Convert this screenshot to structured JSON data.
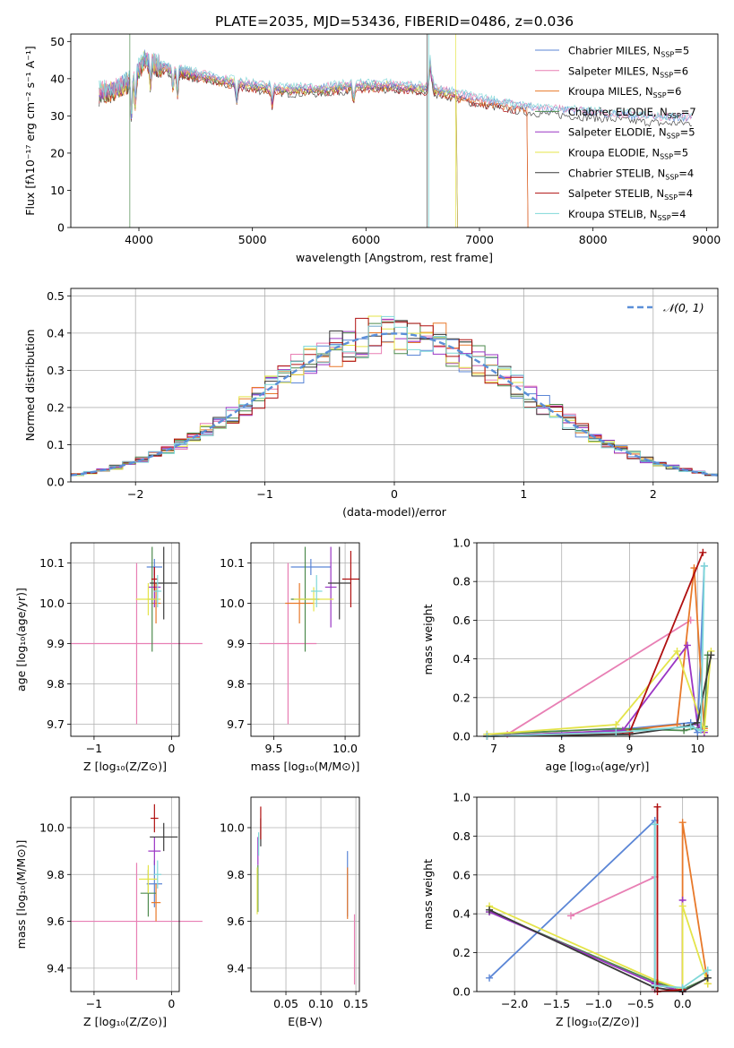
{
  "colors": {
    "chabrier_miles": "#5b86d6",
    "salpeter_miles": "#e87fb4",
    "kroupa_miles": "#e8792a",
    "chabrier_elodie": "#4e8a4e",
    "salpeter_elodie": "#9a35c4",
    "kroupa_elodie": "#e4e44a",
    "chabrier_stelib": "#3a3a3a",
    "salpeter_stelib": "#b01010",
    "kroupa_stelib": "#7fd8d8",
    "normal": "#5b8fd8",
    "grid": "#b0b0b0"
  },
  "chart_data": [
    {
      "id": "spectrum",
      "type": "line",
      "title": "PLATE=2035, MJD=53436, FIBERID=0486, z=0.036",
      "xlabel": "wavelength [Angstrom, rest frame]",
      "ylabel": "Flux [fλ10⁻¹⁷ erg cm⁻² s⁻¹ A⁻¹]",
      "xlim": [
        3400,
        9100
      ],
      "ylim": [
        0,
        52
      ],
      "xticks": [
        "4000",
        "5000",
        "6000",
        "7000",
        "8000",
        "9000"
      ],
      "yticks": [
        "0",
        "10",
        "20",
        "30",
        "40",
        "50"
      ],
      "grid": false,
      "legend_position": "top-right",
      "legend": [
        {
          "label": "Chabrier MILES, N",
          "sub": "SSP",
          "suffix": "=5",
          "key": "chabrier_miles"
        },
        {
          "label": "Salpeter MILES, N",
          "sub": "SSP",
          "suffix": "=6",
          "key": "salpeter_miles"
        },
        {
          "label": "Kroupa MILES, N",
          "sub": "SSP",
          "suffix": "=6",
          "key": "kroupa_miles"
        },
        {
          "label": "Chabrier ELODIE, N",
          "sub": "SSP",
          "suffix": "=7",
          "key": "chabrier_elodie"
        },
        {
          "label": "Salpeter ELODIE, N",
          "sub": "SSP",
          "suffix": "=5",
          "key": "salpeter_elodie"
        },
        {
          "label": "Kroupa ELODIE, N",
          "sub": "SSP",
          "suffix": "=5",
          "key": "kroupa_elodie"
        },
        {
          "label": "Chabrier STELIB, N",
          "sub": "SSP",
          "suffix": "=4",
          "key": "chabrier_stelib"
        },
        {
          "label": "Salpeter STELIB, N",
          "sub": "SSP",
          "suffix": "=4",
          "key": "salpeter_stelib"
        },
        {
          "label": "Kroupa STELIB, N",
          "sub": "SSP",
          "suffix": "=4",
          "key": "kroupa_stelib"
        }
      ],
      "continuum": [
        [
          3650,
          36
        ],
        [
          3800,
          37
        ],
        [
          3950,
          40
        ],
        [
          4050,
          45
        ],
        [
          4200,
          43
        ],
        [
          4500,
          41
        ],
        [
          4800,
          39
        ],
        [
          5000,
          38
        ],
        [
          5300,
          37
        ],
        [
          5600,
          37
        ],
        [
          5900,
          38
        ],
        [
          6200,
          38
        ],
        [
          6600,
          37
        ],
        [
          7000,
          34
        ],
        [
          7400,
          32
        ],
        [
          7800,
          31
        ],
        [
          8200,
          30
        ],
        [
          8600,
          29
        ],
        [
          8900,
          29
        ]
      ]
    },
    {
      "id": "residuals",
      "type": "histogram",
      "xlabel": "(data-model)/error",
      "ylabel": "Normed distribution",
      "xlim": [
        -2.5,
        2.5
      ],
      "ylim": [
        0,
        0.52
      ],
      "xticks": [
        "−2",
        "−1",
        "0",
        "1",
        "2"
      ],
      "yticks": [
        "0.0",
        "0.1",
        "0.2",
        "0.3",
        "0.4",
        "0.5"
      ],
      "grid": true,
      "legend_position": "top-right",
      "legend": [
        {
          "label": "𝒩(0, 1)",
          "key": "normal",
          "style": "dashed"
        }
      ],
      "bin_width": 0.1,
      "normal": {
        "mean": 0,
        "sigma": 1
      }
    },
    {
      "id": "age_vs_Z",
      "type": "errorbar",
      "xlabel": "Z [log₁₀(Z/Z⊙)]",
      "ylabel": "age  [log₁₀(age/yr)]",
      "xlim": [
        -1.3,
        0.1
      ],
      "ylim": [
        9.67,
        10.15
      ],
      "xticks": [
        "−1",
        "0"
      ],
      "yticks": [
        "9.7",
        "9.8",
        "9.9",
        "10.0",
        "10.1"
      ],
      "grid": true,
      "points": [
        {
          "key": "chabrier_miles",
          "x": -0.22,
          "xerr": 0.1,
          "y": 10.09,
          "yerr": 0.02
        },
        {
          "key": "salpeter_miles",
          "x": -0.45,
          "xerr": 0.85,
          "y": 9.9,
          "yerr": 0.2
        },
        {
          "key": "kroupa_miles",
          "x": -0.2,
          "xerr": 0.06,
          "y": 10.0,
          "yerr": 0.05
        },
        {
          "key": "chabrier_elodie",
          "x": -0.25,
          "xerr": 0.06,
          "y": 10.01,
          "yerr": 0.13
        },
        {
          "key": "salpeter_elodie",
          "x": -0.22,
          "xerr": 0.08,
          "y": 10.04,
          "yerr": 0.05
        },
        {
          "key": "kroupa_elodie",
          "x": -0.3,
          "xerr": 0.16,
          "y": 10.01,
          "yerr": 0.04
        },
        {
          "key": "chabrier_stelib",
          "x": -0.1,
          "xerr": 0.18,
          "y": 10.05,
          "yerr": 0.09
        },
        {
          "key": "salpeter_stelib",
          "x": -0.22,
          "xerr": 0.04,
          "y": 10.06,
          "yerr": 0.03
        },
        {
          "key": "kroupa_stelib",
          "x": -0.18,
          "xerr": 0.05,
          "y": 10.03,
          "yerr": 0.04
        }
      ]
    },
    {
      "id": "age_vs_mass",
      "type": "errorbar",
      "xlabel": "mass [log₁₀(M/M⊙)]",
      "ylabel": "",
      "xlim": [
        9.34,
        10.1
      ],
      "ylim": [
        9.67,
        10.15
      ],
      "xticks": [
        "9.5",
        "10.0"
      ],
      "yticks": [
        "9.7",
        "9.8",
        "9.9",
        "10.0",
        "10.1"
      ],
      "grid": true,
      "points": [
        {
          "key": "chabrier_miles",
          "x": 9.76,
          "xerr": 0.14,
          "y": 10.09,
          "yerr": 0.02
        },
        {
          "key": "salpeter_miles",
          "x": 9.6,
          "xerr": 0.2,
          "y": 9.9,
          "yerr": 0.2
        },
        {
          "key": "kroupa_miles",
          "x": 9.68,
          "xerr": 0.1,
          "y": 10.0,
          "yerr": 0.05
        },
        {
          "key": "chabrier_elodie",
          "x": 9.72,
          "xerr": 0.1,
          "y": 10.01,
          "yerr": 0.13
        },
        {
          "key": "salpeter_elodie",
          "x": 9.9,
          "xerr": 0.04,
          "y": 10.04,
          "yerr": 0.1
        },
        {
          "key": "kroupa_elodie",
          "x": 9.78,
          "xerr": 0.14,
          "y": 10.01,
          "yerr": 0.03
        },
        {
          "key": "chabrier_stelib",
          "x": 9.96,
          "xerr": 0.08,
          "y": 10.05,
          "yerr": 0.09
        },
        {
          "key": "salpeter_stelib",
          "x": 10.04,
          "xerr": 0.06,
          "y": 10.06,
          "yerr": 0.07
        },
        {
          "key": "kroupa_stelib",
          "x": 9.8,
          "xerr": 0.04,
          "y": 10.03,
          "yerr": 0.04
        }
      ]
    },
    {
      "id": "weight_vs_age",
      "type": "line",
      "xlabel": "age  [log₁₀(age/yr)]",
      "ylabel": "mass weight",
      "xlim": [
        6.75,
        10.3
      ],
      "ylim": [
        0,
        1.0
      ],
      "xticks": [
        "7",
        "8",
        "9",
        "10"
      ],
      "yticks": [
        "0.0",
        "0.2",
        "0.4",
        "0.6",
        "0.8",
        "1.0"
      ],
      "grid": true,
      "series": [
        {
          "key": "chabrier_miles",
          "x": [
            6.9,
            8.0,
            9.0,
            9.9,
            10.0,
            10.1
          ],
          "y": [
            0.0,
            0.01,
            0.04,
            0.07,
            0.02,
            0.88
          ]
        },
        {
          "key": "salpeter_miles",
          "x": [
            7.2,
            9.9
          ],
          "y": [
            0.01,
            0.6
          ]
        },
        {
          "key": "kroupa_miles",
          "x": [
            6.9,
            8.9,
            9.7,
            9.95,
            10.1
          ],
          "y": [
            0.0,
            0.03,
            0.06,
            0.87,
            0.04
          ]
        },
        {
          "key": "chabrier_elodie",
          "x": [
            6.9,
            8.8,
            9.8,
            10.1,
            10.15
          ],
          "y": [
            0.01,
            0.04,
            0.03,
            0.05,
            0.42
          ]
        },
        {
          "key": "salpeter_elodie",
          "x": [
            6.9,
            8.9,
            9.85,
            10.0,
            10.1
          ],
          "y": [
            0.0,
            0.03,
            0.47,
            0.06,
            0.02
          ]
        },
        {
          "key": "kroupa_elodie",
          "x": [
            6.9,
            8.8,
            9.7,
            10.1,
            10.2
          ],
          "y": [
            0.01,
            0.06,
            0.44,
            0.03,
            0.44
          ]
        },
        {
          "key": "chabrier_stelib",
          "x": [
            6.9,
            9.0,
            9.8,
            10.0,
            10.2
          ],
          "y": [
            0.0,
            0.01,
            0.05,
            0.07,
            0.42
          ]
        },
        {
          "key": "salpeter_stelib",
          "x": [
            6.9,
            9.0,
            10.08
          ],
          "y": [
            0.0,
            0.02,
            0.95
          ]
        },
        {
          "key": "kroupa_stelib",
          "x": [
            6.9,
            8.8,
            9.9,
            10.05,
            10.1
          ],
          "y": [
            0.0,
            0.02,
            0.05,
            0.03,
            0.88
          ]
        }
      ]
    },
    {
      "id": "mass_vs_Z",
      "type": "errorbar",
      "xlabel": "Z [log₁₀(Z/Z⊙)]",
      "ylabel": "mass [log₁₀(M/M⊙)]",
      "xlim": [
        -1.3,
        0.1
      ],
      "ylim": [
        9.3,
        10.13
      ],
      "xticks": [
        "−1",
        "0"
      ],
      "yticks": [
        "9.4",
        "9.6",
        "9.8",
        "10.0"
      ],
      "grid": true,
      "points": [
        {
          "key": "chabrier_miles",
          "x": -0.22,
          "xerr": 0.1,
          "y": 9.76,
          "yerr": 0.1
        },
        {
          "key": "salpeter_miles",
          "x": -0.45,
          "xerr": 0.85,
          "y": 9.6,
          "yerr": 0.25
        },
        {
          "key": "kroupa_miles",
          "x": -0.2,
          "xerr": 0.06,
          "y": 9.68,
          "yerr": 0.08
        },
        {
          "key": "chabrier_elodie",
          "x": -0.3,
          "xerr": 0.1,
          "y": 9.72,
          "yerr": 0.1
        },
        {
          "key": "salpeter_elodie",
          "x": -0.22,
          "xerr": 0.08,
          "y": 9.9,
          "yerr": 0.06
        },
        {
          "key": "kroupa_elodie",
          "x": -0.3,
          "xerr": 0.12,
          "y": 9.78,
          "yerr": 0.06
        },
        {
          "key": "chabrier_stelib",
          "x": -0.1,
          "xerr": 0.18,
          "y": 9.96,
          "yerr": 0.06
        },
        {
          "key": "salpeter_stelib",
          "x": -0.22,
          "xerr": 0.05,
          "y": 10.04,
          "yerr": 0.06
        },
        {
          "key": "kroupa_stelib",
          "x": -0.18,
          "xerr": 0.05,
          "y": 9.8,
          "yerr": 0.06
        }
      ]
    },
    {
      "id": "mass_vs_ebv",
      "type": "errorbar",
      "xlabel": "E(B-V)",
      "ylabel": "",
      "xlim": [
        0.0,
        0.155
      ],
      "ylim": [
        9.3,
        10.13
      ],
      "xticks": [
        "0.05",
        "0.10",
        "0.15"
      ],
      "yticks": [
        "9.4",
        "9.6",
        "9.8",
        "10.0"
      ],
      "grid": true,
      "points": [
        {
          "key": "chabrier_miles",
          "x": 0.138,
          "xerr": 0.0,
          "y": 9.76,
          "yerr": 0.14
        },
        {
          "key": "salpeter_miles",
          "x": 0.148,
          "xerr": 0.0,
          "y": 9.48,
          "yerr": 0.15
        },
        {
          "key": "kroupa_miles",
          "x": 0.138,
          "xerr": 0.0,
          "y": 9.72,
          "yerr": 0.11
        },
        {
          "key": "chabrier_elodie",
          "x": 0.01,
          "xerr": 0.0,
          "y": 9.74,
          "yerr": 0.1
        },
        {
          "key": "salpeter_elodie",
          "x": 0.01,
          "xerr": 0.0,
          "y": 9.9,
          "yerr": 0.06
        },
        {
          "key": "kroupa_elodie",
          "x": 0.009,
          "xerr": 0.0,
          "y": 9.73,
          "yerr": 0.1
        },
        {
          "key": "chabrier_stelib",
          "x": 0.014,
          "xerr": 0.0,
          "y": 9.98,
          "yerr": 0.06
        },
        {
          "key": "salpeter_stelib",
          "x": 0.014,
          "xerr": 0.0,
          "y": 10.02,
          "yerr": 0.07
        },
        {
          "key": "kroupa_stelib",
          "x": 0.011,
          "xerr": 0.0,
          "y": 9.93,
          "yerr": 0.05
        }
      ]
    },
    {
      "id": "weight_vs_Z",
      "type": "line",
      "xlabel": "Z [log₁₀(Z/Z⊙)]",
      "ylabel": "mass weight",
      "xlim": [
        -2.45,
        0.42
      ],
      "ylim": [
        0,
        1.0
      ],
      "xticks": [
        "−2.0",
        "−1.5",
        "−1.0",
        "−0.5",
        "0.0"
      ],
      "yticks": [
        "0.0",
        "0.2",
        "0.4",
        "0.6",
        "0.8",
        "1.0"
      ],
      "grid": true,
      "series": [
        {
          "key": "chabrier_miles",
          "x": [
            -2.3,
            -0.33,
            -0.33,
            0.0
          ],
          "y": [
            0.07,
            0.88,
            0.04,
            0.0
          ]
        },
        {
          "key": "salpeter_miles",
          "x": [
            -1.33,
            -0.33,
            -0.33
          ],
          "y": [
            0.39,
            0.59,
            0.01
          ]
        },
        {
          "key": "kroupa_miles",
          "x": [
            -0.33,
            0.0,
            0.0,
            0.3
          ],
          "y": [
            0.04,
            0.0,
            0.87,
            0.04
          ]
        },
        {
          "key": "chabrier_elodie",
          "x": [
            -2.3,
            -0.33,
            0.0,
            0.3
          ],
          "y": [
            0.41,
            0.05,
            0.01,
            0.07
          ]
        },
        {
          "key": "salpeter_elodie",
          "x": [
            -2.3,
            -0.33,
            0.0,
            0.0
          ],
          "y": [
            0.41,
            0.04,
            0.0,
            0.47
          ]
        },
        {
          "key": "kroupa_elodie",
          "x": [
            -2.3,
            -0.33,
            0.0,
            0.0,
            0.3
          ],
          "y": [
            0.44,
            0.06,
            0.01,
            0.44,
            0.04
          ]
        },
        {
          "key": "chabrier_stelib",
          "x": [
            -2.3,
            -0.33,
            0.0,
            0.3
          ],
          "y": [
            0.42,
            0.02,
            0.0,
            0.07
          ]
        },
        {
          "key": "salpeter_stelib",
          "x": [
            -0.3,
            -0.3,
            0.0
          ],
          "y": [
            0.95,
            0.0,
            0.01
          ]
        },
        {
          "key": "kroupa_stelib",
          "x": [
            -0.33,
            -0.33,
            0.0,
            0.3
          ],
          "y": [
            0.86,
            0.03,
            0.02,
            0.11
          ]
        }
      ]
    }
  ]
}
